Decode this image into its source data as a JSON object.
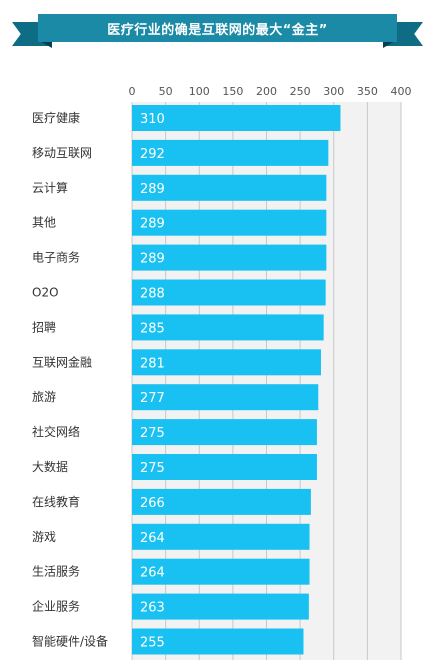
{
  "banner": {
    "title": "医疗行业的确是互联网的最大“金主”"
  },
  "chart_data": {
    "type": "bar",
    "orientation": "horizontal",
    "title": "医疗行业的确是互联网的最大“金主”",
    "xlim": [
      0,
      400
    ],
    "ticks": [
      "0",
      "50",
      "100",
      "150",
      "200",
      "250",
      "300",
      "350",
      "400"
    ],
    "grid": true,
    "categories": [
      "医疗健康",
      "移动互联网",
      "云计算",
      "其他",
      "电子商务",
      "O2O",
      "招聘",
      "互联网金融",
      "旅游",
      "社交网络",
      "大数据",
      "在线教育",
      "游戏",
      "生活服务",
      "企业服务",
      "智能硬件/设备"
    ],
    "values": [
      310,
      292,
      289,
      289,
      289,
      288,
      285,
      281,
      277,
      275,
      275,
      266,
      264,
      264,
      263,
      255
    ],
    "colors": {
      "bar": "#19c1f2",
      "plot_bg": "#f2f2f2",
      "grid": "#c8c8c8"
    }
  }
}
